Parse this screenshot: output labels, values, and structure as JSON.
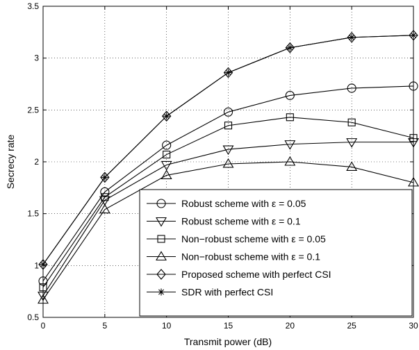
{
  "chart_data": {
    "type": "line",
    "xlabel": "Transmit power (dB)",
    "ylabel": "Secrecy rate",
    "xlim": [
      0,
      30
    ],
    "ylim": [
      0.5,
      3.5
    ],
    "x_ticks": [
      0,
      5,
      10,
      15,
      20,
      25,
      30
    ],
    "y_ticks": [
      0.5,
      1,
      1.5,
      2,
      2.5,
      3,
      3.5
    ],
    "grid": true,
    "legend_position": "bottom-right",
    "x": [
      0,
      5,
      10,
      15,
      20,
      25,
      30
    ],
    "series": [
      {
        "name": "Robust scheme with ε = 0.05",
        "marker": "circle",
        "values": [
          0.85,
          1.71,
          2.16,
          2.48,
          2.64,
          2.71,
          2.73
        ]
      },
      {
        "name": "Robust scheme with ε = 0.1",
        "marker": "triangle-down",
        "values": [
          0.71,
          1.63,
          1.97,
          2.12,
          2.17,
          2.19,
          2.19
        ]
      },
      {
        "name": "Non−robust scheme with ε = 0.05",
        "marker": "square",
        "values": [
          0.79,
          1.66,
          2.07,
          2.35,
          2.43,
          2.38,
          2.23
        ]
      },
      {
        "name": "Non−robust scheme with ε = 0.1",
        "marker": "triangle-up",
        "values": [
          0.67,
          1.54,
          1.87,
          1.98,
          2.0,
          1.95,
          1.8
        ]
      },
      {
        "name": "Proposed scheme with perfect CSI",
        "marker": "diamond",
        "values": [
          1.01,
          1.85,
          2.44,
          2.86,
          3.1,
          3.2,
          3.22
        ]
      },
      {
        "name": "SDR with perfect CSI",
        "marker": "asterisk",
        "values": [
          1.01,
          1.85,
          2.44,
          2.86,
          3.1,
          3.2,
          3.22
        ]
      }
    ]
  }
}
